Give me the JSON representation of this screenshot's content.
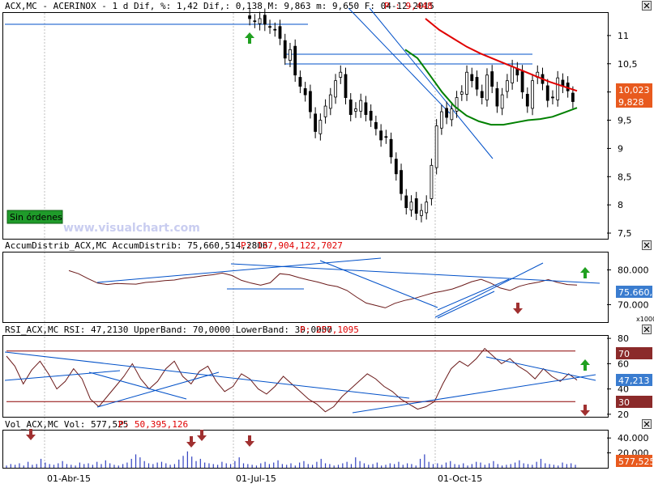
{
  "header": {
    "price": "ACX,MC - ACERINOX -  1 d Dif, %: 1,42 Dif,: 0,138 M: 9,863 m: 9,650 F: 04-12-2015",
    "price_p": "P : 9,448",
    "accum": "AccumDistrib_ACX,MC AccumDistrib: 75,660,514,2806",
    "accum_p": "P: 137,904,122,7027",
    "rsi": "RSI_ACX,MC RSI: 47,2130 UpperBand: 70,0000 LowerBand: 30,0000",
    "rsi_p": "P: 257,1095",
    "vol": "Vol_ACX,MC Vol: 577,525",
    "vol_p": "P: 50,395,126"
  },
  "watermark": "www.visualchart.com",
  "status_badge": "Sin órdenes",
  "colors": {
    "candles": "#000000",
    "ma_red": "#e00000",
    "ma_green": "#008000",
    "trendlines": "#0050c8",
    "bands": "#8b0000",
    "volume": "#3040c0",
    "up_arrow": "#20a020",
    "down_arrow": "#a03030",
    "last_price_label": "#e85a1e",
    "indicator_label": "#3a7ccf"
  },
  "icons": [
    "up-arrow-icon",
    "down-arrow-icon",
    "close-box-icon"
  ],
  "chart_data": [
    {
      "type": "candlestick",
      "title": "ACX,MC - ACERINOX",
      "y_ticks": [
        "11",
        "10,5",
        "10",
        "9,5",
        "9",
        "8,5",
        "8",
        "7,5"
      ],
      "ylim": [
        7.4,
        11.4
      ],
      "price_labels": [
        "10,023",
        "9,828"
      ],
      "x_ticks": [
        "01-Abr-15",
        "01-Jul-15",
        "01-Oct-15"
      ],
      "series": [
        {
          "name": "Close",
          "values": [
            11.3,
            11.25,
            11.3,
            11.2,
            11.15,
            11.1,
            10.95,
            10.6,
            10.75,
            10.3,
            10.1,
            9.95,
            9.65,
            9.3,
            9.5,
            9.75,
            9.95,
            10.2,
            10.35,
            9.9,
            9.6,
            9.7,
            9.85,
            9.6,
            9.5,
            9.35,
            9.15,
            9.2,
            8.85,
            8.55,
            8.2,
            7.95,
            8.05,
            7.85,
            7.9,
            8.05,
            8.7,
            9.4,
            9.65,
            9.55,
            9.7,
            9.9,
            10.0,
            10.35,
            10.2,
            10.05,
            9.9,
            10.3,
            10.1,
            9.75,
            9.95,
            10.2,
            10.45,
            10.3,
            10.0,
            9.75,
            10.2,
            10.35,
            10.15,
            9.85,
            9.9,
            10.25,
            10.1,
            10.02,
            9.83
          ]
        },
        {
          "name": "MA red",
          "values": [
            11.3,
            11.1,
            10.95,
            10.8,
            10.68,
            10.58,
            10.48,
            10.38,
            10.28,
            10.18,
            10.1,
            10.02
          ]
        },
        {
          "name": "MA green",
          "values": [
            10.75,
            10.6,
            10.3,
            10.0,
            9.75,
            9.58,
            9.48,
            9.42,
            9.42,
            9.46,
            9.5,
            9.52,
            9.56,
            9.64,
            9.72
          ]
        }
      ]
    },
    {
      "type": "line",
      "title": "AccumDistrib_ACX,MC",
      "y_ticks": [
        "80.000",
        "70.000"
      ],
      "ylim": [
        65,
        85
      ],
      "price_labels": [
        "75.660,5"
      ],
      "extra_label": "x1000",
      "series": [
        {
          "name": "AccumDistrib",
          "values": [
            79.8,
            78.9,
            77.5,
            76.2,
            75.8,
            76.1,
            76.0,
            75.9,
            76.4,
            76.6,
            76.9,
            77.1,
            77.6,
            77.9,
            78.3,
            78.6,
            79.1,
            78.4,
            77.0,
            76.2,
            75.6,
            76.3,
            78.9,
            78.6,
            77.8,
            77.1,
            76.5,
            75.7,
            75.2,
            74.1,
            72.2,
            70.5,
            69.8,
            69.1,
            70.4,
            71.2,
            71.8,
            72.6,
            73.4,
            73.9,
            74.5,
            75.5,
            76.6,
            77.3,
            76.2,
            74.8,
            74.1,
            75.3,
            76.0,
            76.5,
            77.2,
            76.4,
            75.8,
            75.66
          ]
        }
      ]
    },
    {
      "type": "line",
      "title": "RSI_ACX,MC",
      "y_ticks": [
        "80",
        "60",
        "40",
        "20"
      ],
      "ylim": [
        18,
        82
      ],
      "bands": [
        70,
        30
      ],
      "price_labels": [
        "70",
        "47,213",
        "30"
      ],
      "series": [
        {
          "name": "RSI",
          "values": [
            66,
            58,
            44,
            55,
            62,
            52,
            40,
            46,
            56,
            48,
            32,
            26,
            34,
            42,
            50,
            60,
            48,
            40,
            46,
            56,
            62,
            50,
            44,
            54,
            58,
            46,
            38,
            42,
            52,
            48,
            40,
            36,
            42,
            50,
            44,
            38,
            32,
            28,
            22,
            26,
            34,
            40,
            46,
            52,
            48,
            42,
            38,
            32,
            28,
            24,
            26,
            30,
            44,
            56,
            62,
            58,
            64,
            72,
            66,
            60,
            64,
            58,
            54,
            48,
            56,
            50,
            46,
            52,
            47
          ]
        }
      ]
    },
    {
      "type": "bar",
      "title": "Vol_ACX,MC",
      "y_ticks": [
        "40.000",
        "20.000"
      ],
      "ylim": [
        0,
        50
      ],
      "price_labels": [
        "577,525"
      ],
      "series": [
        {
          "name": "Vol",
          "values": [
            3,
            5,
            4,
            6,
            3,
            8,
            4,
            5,
            12,
            7,
            5,
            4,
            6,
            9,
            5,
            4,
            3,
            7,
            5,
            6,
            4,
            8,
            5,
            10,
            6,
            4,
            3,
            5,
            7,
            12,
            18,
            14,
            9,
            6,
            5,
            7,
            8,
            6,
            4,
            5,
            11,
            16,
            22,
            15,
            9,
            12,
            7,
            6,
            5,
            4,
            8,
            6,
            5,
            9,
            14,
            6,
            5,
            4,
            3,
            6,
            8,
            5,
            7,
            10,
            5,
            4,
            6,
            3,
            7,
            9,
            5,
            4,
            8,
            12,
            6,
            5,
            3,
            4,
            6,
            8,
            5,
            14,
            9,
            6,
            4,
            5,
            7,
            3,
            4,
            6,
            5,
            8,
            4,
            6,
            5,
            3,
            12,
            18,
            8,
            5,
            6,
            4,
            7,
            9,
            5,
            4,
            6,
            3,
            5,
            8,
            7,
            4,
            6,
            9,
            5,
            3,
            4,
            5,
            7,
            10,
            6,
            5,
            4,
            8,
            12,
            6,
            5,
            4,
            3,
            7,
            5,
            6,
            4
          ]
        }
      ]
    }
  ]
}
